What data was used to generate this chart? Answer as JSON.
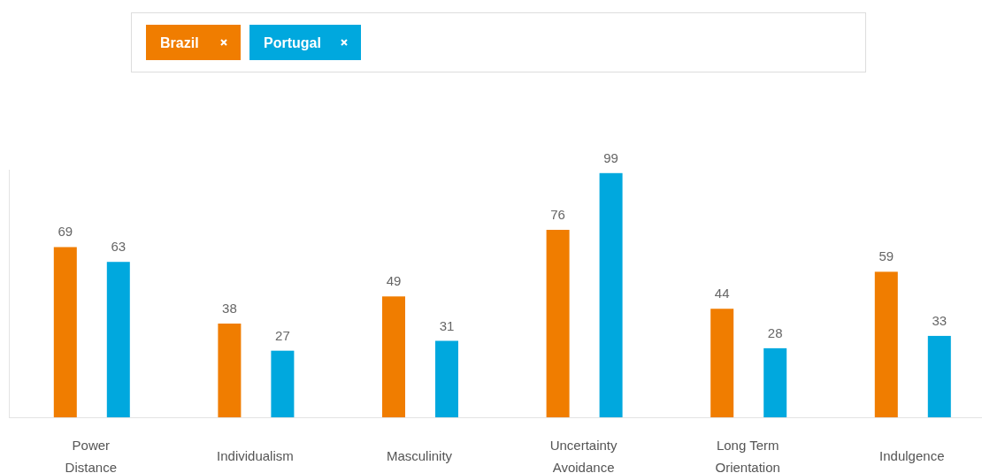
{
  "chart_data": {
    "type": "bar",
    "categories": [
      "Power Distance",
      "Individualism",
      "Masculinity",
      "Uncertainty Avoidance",
      "Long Term Orientation",
      "Indulgence"
    ],
    "series": [
      {
        "name": "Brazil",
        "color": "#f07d00",
        "values": [
          69,
          38,
          49,
          76,
          44,
          59
        ]
      },
      {
        "name": "Portugal",
        "color": "#00a8de",
        "values": [
          63,
          27,
          31,
          99,
          28,
          33
        ]
      }
    ],
    "ylim": [
      0,
      100
    ],
    "data_labels": true,
    "legend": "top"
  }
}
